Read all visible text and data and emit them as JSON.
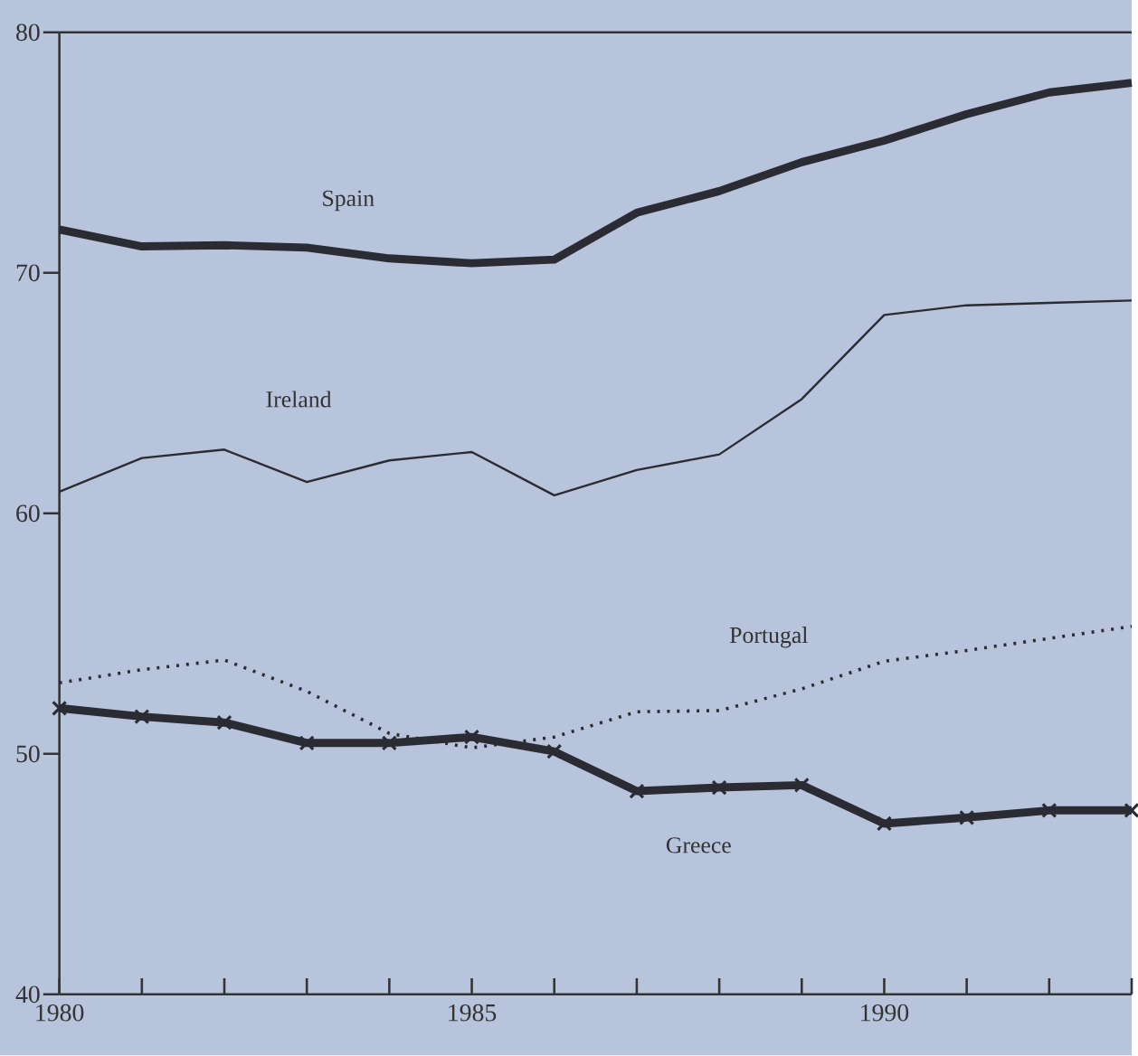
{
  "chart_data": {
    "type": "line",
    "x": [
      1980,
      1981,
      1982,
      1983,
      1984,
      1985,
      1986,
      1987,
      1988,
      1989,
      1990,
      1991,
      1992,
      1993
    ],
    "series": [
      {
        "name": "Spain",
        "color": "#2b2b33",
        "values": [
          71.8,
          71.1,
          71.15,
          71.05,
          70.6,
          70.4,
          70.55,
          72.5,
          73.4,
          74.6,
          75.5,
          76.6,
          77.5,
          77.9
        ]
      },
      {
        "name": "Ireland",
        "color": "#2b2b33",
        "values": [
          60.9,
          62.3,
          62.65,
          61.3,
          62.2,
          62.55,
          60.75,
          61.8,
          62.45,
          64.75,
          68.25,
          68.65,
          68.75,
          68.85
        ]
      },
      {
        "name": "Portugal",
        "color": "#2b2b33",
        "line_style": "dotted",
        "values": [
          52.95,
          53.5,
          53.9,
          52.6,
          50.85,
          50.25,
          50.7,
          51.75,
          51.8,
          52.7,
          53.85,
          54.3,
          54.8,
          55.3
        ]
      },
      {
        "name": "Greece",
        "color": "#2b2b33",
        "marker": "cross",
        "values": [
          51.9,
          51.55,
          51.3,
          50.45,
          50.45,
          50.7,
          50.1,
          48.45,
          48.6,
          48.7,
          47.1,
          47.35,
          47.65,
          47.65
        ]
      }
    ],
    "xlim": [
      1980,
      1993
    ],
    "xticks": [
      1980,
      {
        "value": 1981,
        "label": null
      },
      {
        "value": 1982,
        "label": null
      },
      {
        "value": 1983,
        "label": null
      },
      {
        "value": 1984,
        "label": null
      },
      1985,
      {
        "value": 1986,
        "label": null
      },
      {
        "value": 1987,
        "label": null
      },
      {
        "value": 1988,
        "label": null
      },
      {
        "value": 1989,
        "label": null
      },
      1990,
      {
        "value": 1991,
        "label": null
      },
      {
        "value": 1992,
        "label": null
      },
      {
        "value": 1993,
        "label": null
      }
    ],
    "ylim": [
      40,
      80
    ],
    "yticks": [
      40,
      50,
      60,
      70,
      80
    ],
    "grid": false
  }
}
